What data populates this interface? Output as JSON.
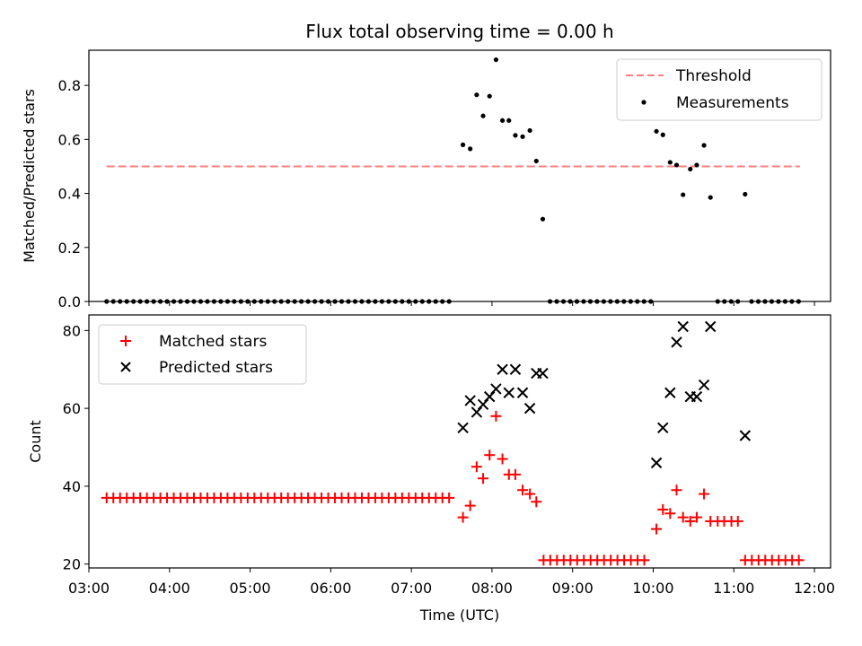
{
  "title": "Flux total observing time = 0.00 h",
  "chart_data": [
    {
      "type": "scatter",
      "ylabel": "Matched/Predicted stars",
      "xlim": [
        3.0,
        12.2
      ],
      "ylim": [
        0.0,
        0.93
      ],
      "yticks": [
        0.0,
        0.2,
        0.4,
        0.6,
        0.8
      ],
      "legend_position": "top-right",
      "threshold": {
        "name": "Threshold",
        "value": 0.5,
        "x_range": [
          3.22,
          11.82
        ],
        "color": "#ff7f7f"
      },
      "series": [
        {
          "name": "Measurements",
          "color": "#000000",
          "marker": "dot",
          "points": [
            [
              7.64,
              0.58
            ],
            [
              7.73,
              0.565
            ],
            [
              7.81,
              0.765
            ],
            [
              7.89,
              0.687
            ],
            [
              7.97,
              0.76
            ],
            [
              8.05,
              0.895
            ],
            [
              8.13,
              0.67
            ],
            [
              8.21,
              0.67
            ],
            [
              8.29,
              0.615
            ],
            [
              8.38,
              0.61
            ],
            [
              8.47,
              0.633
            ],
            [
              8.55,
              0.52
            ],
            [
              8.63,
              0.305
            ],
            [
              10.04,
              0.63
            ],
            [
              10.12,
              0.617
            ],
            [
              10.21,
              0.515
            ],
            [
              10.29,
              0.505
            ],
            [
              10.37,
              0.395
            ],
            [
              10.46,
              0.49
            ],
            [
              10.54,
              0.505
            ],
            [
              10.63,
              0.578
            ],
            [
              10.71,
              0.385
            ],
            [
              11.14,
              0.397
            ]
          ],
          "zero_segments": [
            {
              "start": 3.22,
              "end": 7.55,
              "step": 0.0833
            },
            {
              "start": 8.72,
              "end": 9.97,
              "step": 0.0833
            },
            {
              "start": 10.8,
              "end": 11.06,
              "step": 0.0833
            },
            {
              "start": 11.22,
              "end": 11.82,
              "step": 0.0833
            }
          ]
        }
      ]
    },
    {
      "type": "scatter",
      "xlabel": "Time (UTC)",
      "ylabel": "Count",
      "xlim": [
        3.0,
        12.2
      ],
      "ylim": [
        19.0,
        84.0
      ],
      "yticks": [
        20,
        40,
        60,
        80
      ],
      "xticks": [
        3,
        4,
        5,
        6,
        7,
        8,
        9,
        10,
        11,
        12
      ],
      "xtick_labels": [
        "03:00",
        "04:00",
        "05:00",
        "06:00",
        "07:00",
        "08:00",
        "09:00",
        "10:00",
        "11:00",
        "12:00"
      ],
      "legend_position": "top-left",
      "series": [
        {
          "name": "Matched stars",
          "color": "#ff0000",
          "marker": "plus",
          "constant_segments": [
            {
              "start": 3.22,
              "end": 7.55,
              "step": 0.0833,
              "value": 37
            },
            {
              "start": 8.64,
              "end": 9.97,
              "step": 0.0833,
              "value": 21
            },
            {
              "start": 11.14,
              "end": 11.82,
              "step": 0.0833,
              "value": 21
            }
          ],
          "points": [
            [
              7.64,
              32
            ],
            [
              7.73,
              35
            ],
            [
              7.81,
              45
            ],
            [
              7.89,
              42
            ],
            [
              7.97,
              48
            ],
            [
              8.05,
              58
            ],
            [
              8.13,
              47
            ],
            [
              8.21,
              43
            ],
            [
              8.29,
              43
            ],
            [
              8.38,
              39
            ],
            [
              8.47,
              38
            ],
            [
              8.55,
              36
            ],
            [
              10.04,
              29
            ],
            [
              10.12,
              34
            ],
            [
              10.21,
              33
            ],
            [
              10.29,
              39
            ],
            [
              10.37,
              32
            ],
            [
              10.46,
              31
            ],
            [
              10.54,
              32
            ],
            [
              10.63,
              38
            ],
            [
              10.71,
              31
            ],
            [
              10.8,
              31
            ],
            [
              10.88,
              31
            ],
            [
              10.97,
              31
            ],
            [
              11.05,
              31
            ]
          ]
        },
        {
          "name": "Predicted stars",
          "color": "#000000",
          "marker": "x",
          "points": [
            [
              7.64,
              55
            ],
            [
              7.73,
              62
            ],
            [
              7.81,
              59
            ],
            [
              7.89,
              61
            ],
            [
              7.97,
              63
            ],
            [
              8.05,
              65
            ],
            [
              8.13,
              70
            ],
            [
              8.21,
              64
            ],
            [
              8.29,
              70
            ],
            [
              8.38,
              64
            ],
            [
              8.47,
              60
            ],
            [
              8.55,
              69
            ],
            [
              8.63,
              69
            ],
            [
              10.04,
              46
            ],
            [
              10.12,
              55
            ],
            [
              10.21,
              64
            ],
            [
              10.29,
              77
            ],
            [
              10.37,
              81
            ],
            [
              10.46,
              63
            ],
            [
              10.54,
              63
            ],
            [
              10.63,
              66
            ],
            [
              10.71,
              81
            ],
            [
              11.14,
              53
            ]
          ]
        }
      ]
    }
  ]
}
